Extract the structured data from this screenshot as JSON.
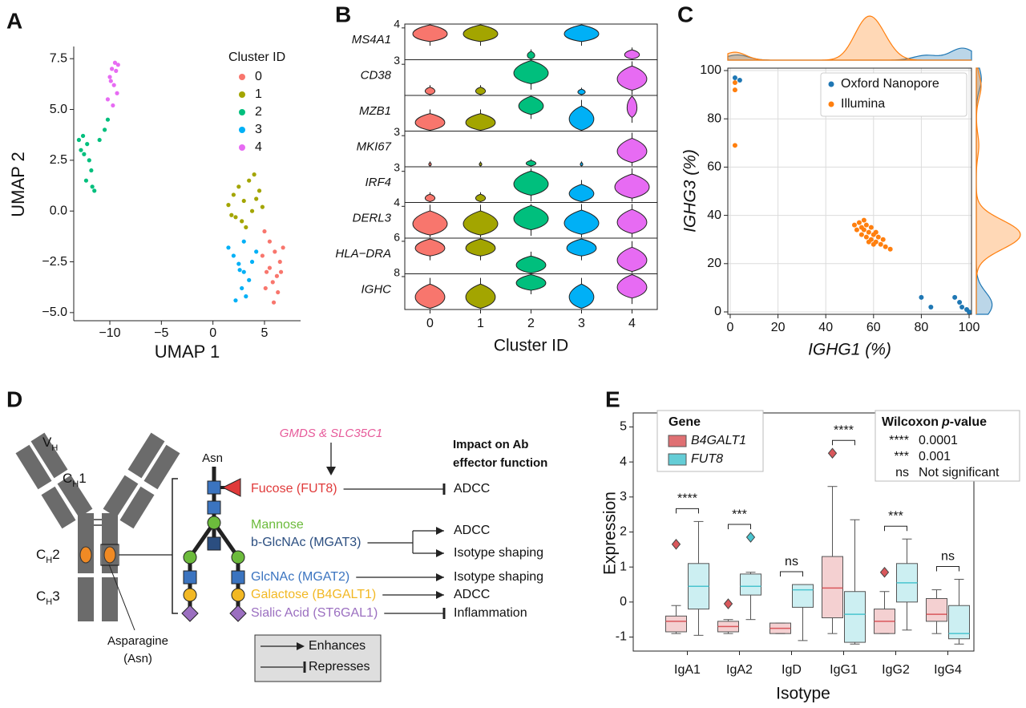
{
  "chart_data": [
    {
      "type": "scatter",
      "label": "A",
      "xlabel": "UMAP 1",
      "ylabel": "UMAP 2",
      "legend_title": "Cluster ID",
      "xlim": [
        -13.5,
        8.5
      ],
      "ylim": [
        -5.4,
        8.1
      ],
      "xticks": [
        {
          "value": -10,
          "label": "−10"
        },
        {
          "value": -5,
          "label": "−5"
        },
        0,
        5
      ],
      "yticks": [
        {
          "value": -5,
          "label": "−5.0"
        },
        {
          "value": -2.5,
          "label": "−2.5"
        },
        {
          "value": 0,
          "label": "0.0"
        },
        2.5,
        {
          "value": 5,
          "label": "5.0"
        },
        7.5
      ],
      "series": [
        {
          "name": "0",
          "color": "#f8766d",
          "x": [
            5,
            5.5,
            6,
            6.5,
            5.2,
            5.8,
            6.3,
            4.8,
            5.5,
            6.8,
            5.9,
            6.2,
            5.1,
            6.6
          ],
          "y": [
            -1,
            -1.5,
            -2,
            -2.5,
            -3,
            -3.5,
            -4,
            -2.2,
            -2.8,
            -1.8,
            -4.5,
            -3.2,
            -3.8,
            -3
          ]
        },
        {
          "name": "1",
          "color": "#a3a500",
          "x": [
            1.5,
            2,
            2.5,
            3,
            3.5,
            4,
            4.5,
            2.2,
            3.2,
            3.8,
            4.2,
            2.8,
            1.8,
            4.8
          ],
          "y": [
            0.3,
            0.8,
            1.2,
            0.5,
            1.5,
            1.8,
            1,
            -0.3,
            -0.8,
            0,
            0.6,
            -0.5,
            -0.2,
            0.2
          ]
        },
        {
          "name": "2",
          "color": "#00bf7d",
          "x": [
            -13,
            -12.6,
            -12.2,
            -12.5,
            -12,
            -11.8,
            -12.3,
            -11.7,
            -11.5,
            -12.8,
            -11,
            -10.5,
            -10.2
          ],
          "y": [
            3.5,
            3.7,
            3.3,
            2.8,
            2.5,
            2,
            1.5,
            1.2,
            1,
            3,
            3.5,
            4,
            4.5
          ]
        },
        {
          "name": "3",
          "color": "#00b0f6",
          "x": [
            1.5,
            2,
            2.5,
            3,
            3.5,
            2.8,
            3.2,
            2.2,
            3.8,
            4.2,
            3,
            2.6
          ],
          "y": [
            -1.8,
            -2.2,
            -2.6,
            -3,
            -3.4,
            -3.8,
            -4.2,
            -4.4,
            -2.5,
            -2,
            -1.5,
            -2.9
          ]
        },
        {
          "name": "4",
          "color": "#e76bf3",
          "x": [
            -9.5,
            -9.2,
            -9.8,
            -10,
            -9.6,
            -9.3,
            -10.2,
            -9.7,
            -9.4,
            -9.9
          ],
          "y": [
            7.3,
            7.2,
            7,
            6.6,
            6.2,
            5.8,
            5.5,
            5.2,
            6.9,
            6.4
          ]
        }
      ]
    },
    {
      "type": "violin",
      "label": "B",
      "xlabel": "Cluster ID",
      "categories": [
        "0",
        "1",
        "2",
        "3",
        "4"
      ],
      "colors": [
        "#f8766d",
        "#a3a500",
        "#00bf7d",
        "#00b0f6",
        "#e76bf3"
      ],
      "rows": [
        {
          "gene": "MS4A1",
          "ylim": [
            0,
            4.3
          ],
          "yticks": [
            4
          ],
          "values": [
            3.3,
            3.3,
            0.4,
            3.3,
            0.5
          ],
          "widths": [
            0.7,
            0.7,
            0.15,
            0.7,
            0.3
          ]
        },
        {
          "gene": "CD38",
          "ylim": [
            0,
            3.3
          ],
          "yticks": [
            3
          ],
          "values": [
            0.3,
            0.3,
            2.2,
            0.2,
            1.6
          ],
          "widths": [
            0.2,
            0.2,
            0.7,
            0.15,
            0.6
          ]
        },
        {
          "gene": "MZB1",
          "ylim": [
            0,
            4.3
          ],
          "yticks": [],
          "values": [
            1,
            1,
            3.2,
            1.5,
            3
          ],
          "widths": [
            0.6,
            0.6,
            0.5,
            0.5,
            0.2
          ]
        },
        {
          "gene": "MKI67",
          "ylim": [
            0,
            3.3
          ],
          "yticks": [
            3
          ],
          "values": [
            0.1,
            0.1,
            0.2,
            0.1,
            1.5
          ],
          "widths": [
            0.05,
            0.05,
            0.2,
            0.05,
            0.6
          ]
        },
        {
          "gene": "IRF4",
          "ylim": [
            0,
            3.3
          ],
          "yticks": [
            3
          ],
          "values": [
            0.3,
            0.3,
            1.8,
            0.8,
            1.5
          ],
          "widths": [
            0.2,
            0.2,
            0.7,
            0.5,
            0.7
          ]
        },
        {
          "gene": "DERL3",
          "ylim": [
            0,
            4.3
          ],
          "yticks": [
            4
          ],
          "values": [
            1.8,
            1.8,
            2.5,
            1.9,
            2
          ],
          "widths": [
            0.7,
            0.7,
            0.7,
            0.7,
            0.6
          ]
        },
        {
          "gene": "HLA−DRA",
          "ylim": [
            0,
            6.3
          ],
          "yticks": [
            6
          ],
          "values": [
            4.8,
            4.8,
            1.5,
            4.8,
            2.5
          ],
          "widths": [
            0.6,
            0.6,
            0.6,
            0.6,
            0.6
          ]
        },
        {
          "gene": "IGHC",
          "ylim": [
            0,
            8.3
          ],
          "yticks": [
            8
          ],
          "values": [
            3,
            3,
            6.5,
            3,
            5.5
          ],
          "widths": [
            0.6,
            0.6,
            0.6,
            0.5,
            0.6
          ]
        }
      ]
    },
    {
      "type": "scatter_marginal",
      "label": "C",
      "xlabel": "IGHG1 (%)",
      "ylabel": "IGHG3 (%)",
      "xlim": [
        -1,
        101
      ],
      "ylim": [
        -1,
        101
      ],
      "xticks": [
        0,
        20,
        40,
        60,
        80,
        100
      ],
      "yticks": [
        0,
        20,
        40,
        60,
        80,
        100
      ],
      "grid": true,
      "legend": "upper right",
      "series": [
        {
          "name": "Oxford Nanopore",
          "color": "#1f77b4",
          "x": [
            2,
            4,
            80,
            84,
            94,
            96,
            97,
            99,
            100
          ],
          "y": [
            97,
            96,
            6,
            2,
            6,
            4,
            2,
            1,
            0
          ]
        },
        {
          "name": "Illumina",
          "color": "#ff7f0e",
          "x": [
            2,
            2,
            2,
            52,
            54,
            55,
            56,
            57,
            58,
            59,
            60,
            61,
            62,
            55,
            57,
            59,
            61,
            63,
            65,
            53,
            58,
            60,
            67,
            64,
            56
          ],
          "y": [
            95,
            92,
            69,
            36,
            37,
            35,
            34,
            36,
            33,
            35,
            32,
            33,
            31,
            32,
            31,
            30,
            29,
            28,
            27,
            34,
            29,
            28,
            26,
            30,
            38
          ]
        }
      ]
    },
    {
      "type": "box",
      "label": "E",
      "xlabel": "Isotype",
      "ylabel": "Expression",
      "categories": [
        "IgA1",
        "IgA2",
        "IgD",
        "IgG1",
        "IgG2",
        "IgG4"
      ],
      "ylim": [
        -1.4,
        5.4
      ],
      "yticks": [
        -1,
        0,
        1,
        2,
        3,
        4,
        5
      ],
      "legend_title": "Gene",
      "series": [
        {
          "name": "B4GALT1",
          "color": "#d9575b",
          "low": [
            -0.9,
            -0.9,
            -0.9,
            -0.9,
            -0.9,
            -0.9
          ],
          "q1": [
            -0.85,
            -0.85,
            -0.9,
            -0.45,
            -0.9,
            -0.55
          ],
          "median": [
            -0.55,
            -0.7,
            -0.75,
            0.4,
            -0.55,
            -0.35
          ],
          "q3": [
            -0.4,
            -0.55,
            -0.6,
            1.3,
            -0.2,
            0.1
          ],
          "high": [
            -0.1,
            -0.5,
            -0.6,
            3.3,
            0.3,
            0.35
          ],
          "outliers": [
            [
              1.65
            ],
            [
              -0.05
            ],
            [],
            [
              4.25
            ],
            [
              0.85
            ],
            []
          ]
        },
        {
          "name": "FUT8",
          "color": "#49c4cf",
          "low": [
            -0.95,
            -0.5,
            -1.1,
            -1.2,
            -0.8,
            -1.2
          ],
          "q1": [
            -0.2,
            0.2,
            -0.15,
            -1.15,
            0,
            -1.05
          ],
          "median": [
            0.45,
            0.45,
            0.35,
            -0.35,
            0.55,
            -0.9
          ],
          "q3": [
            1.1,
            0.8,
            0.5,
            0.3,
            1.1,
            -0.1
          ],
          "high": [
            2.3,
            0.85,
            0.5,
            2.35,
            1.8,
            0.65
          ],
          "outliers": [
            [],
            [
              1.85
            ],
            [],
            [],
            [],
            []
          ]
        }
      ],
      "annotations": [
        "****",
        "***",
        "ns",
        "****",
        "***",
        "ns"
      ],
      "pvalue_legend": {
        "title": [
          "Wilcoxon",
          "p",
          "-value"
        ],
        "rows": [
          [
            "****",
            "0.0001"
          ],
          [
            "***",
            "0.001"
          ],
          [
            "ns",
            "Not significant"
          ]
        ]
      }
    }
  ],
  "diagram": {
    "label": "D",
    "domains": [
      {
        "base": "V",
        "sub": "H"
      },
      {
        "base": "C",
        "sub": "H",
        "num": "1"
      },
      {
        "base": "C",
        "sub": "H",
        "num": "2"
      },
      {
        "base": "C",
        "sub": "H",
        "num": "3"
      }
    ],
    "asparagine": [
      "Asparagine",
      "(Asn)"
    ],
    "asn": "Asn",
    "enzymes": "GMDS & SLC35C1",
    "impact_title": [
      "Impact on Ab",
      "effector function"
    ],
    "glycans": [
      "Fucose (FUT8)",
      "Mannose",
      "b-GlcNAc (MGAT3)",
      "GlcNAc (MGAT2)",
      "Galactose (B4GALT1)",
      "Sialic Acid (ST6GAL1)"
    ],
    "glycan_colors": [
      "#e03a3a",
      "#6cbb3c",
      "#2b4e80",
      "#3b74c0",
      "#f2b824",
      "#9b6fc0"
    ],
    "effects": [
      {
        "label": "ADCC",
        "kind": "represses"
      },
      {
        "label": "ADCC",
        "kind": "enhances"
      },
      {
        "label": "Isotype shaping",
        "kind": "enhances"
      },
      {
        "label": "Isotype shaping",
        "kind": "enhances"
      },
      {
        "label": "ADCC",
        "kind": "enhances"
      },
      {
        "label": "Inflammation",
        "kind": "represses"
      }
    ],
    "legend": [
      {
        "label": "Enhances",
        "kind": "enhances"
      },
      {
        "label": "Represses",
        "kind": "represses"
      }
    ]
  }
}
